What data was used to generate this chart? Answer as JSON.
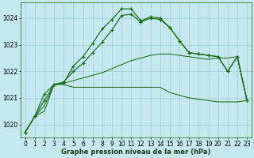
{
  "xlabel": "Graphe pression niveau de la mer (hPa)",
  "background_color": "#c5e8ee",
  "grid_color": "#9fcdd6",
  "line_color": "#1a6b1a",
  "ylim": [
    1019.5,
    1024.6
  ],
  "yticks": [
    1020,
    1021,
    1022,
    1023,
    1024
  ],
  "xlim": [
    -0.5,
    23.5
  ],
  "series1": [
    1019.7,
    1020.3,
    1020.5,
    1021.5,
    1021.5,
    1021.4,
    1021.4,
    1021.4,
    1021.4,
    1021.4,
    1021.4,
    1021.4,
    1021.4,
    1021.4,
    1021.4,
    1021.2,
    1021.1,
    1021.0,
    1020.95,
    1020.9,
    1020.85,
    1020.85,
    1020.85,
    1020.9
  ],
  "series2": [
    1019.7,
    1020.3,
    1020.7,
    1021.5,
    1021.55,
    1021.65,
    1021.75,
    1021.85,
    1021.95,
    1022.1,
    1022.25,
    1022.4,
    1022.5,
    1022.6,
    1022.65,
    1022.65,
    1022.6,
    1022.55,
    1022.5,
    1022.45,
    1022.5,
    1022.5,
    1022.55,
    1020.9
  ],
  "series3": [
    1019.7,
    1020.3,
    1020.9,
    1021.5,
    1021.6,
    1022.0,
    1022.3,
    1022.7,
    1023.1,
    1023.55,
    1024.1,
    1024.15,
    1023.85,
    1024.0,
    1023.95,
    1023.65,
    1023.15,
    1022.7,
    1022.65,
    1022.6,
    1022.55,
    1022.0,
    1022.55,
    1020.9
  ],
  "series4": [
    1019.7,
    1020.3,
    1021.15,
    1021.5,
    1021.55,
    1022.2,
    1022.55,
    1023.05,
    1023.6,
    1023.95,
    1024.35,
    1024.35,
    1023.9,
    1024.05,
    1024.0,
    1023.65,
    1023.15,
    1022.7,
    1022.65,
    1022.6,
    1022.55,
    1022.0,
    1022.55,
    1020.9
  ],
  "xlabel_fontsize": 6.0,
  "tick_fontsize": 5.5
}
